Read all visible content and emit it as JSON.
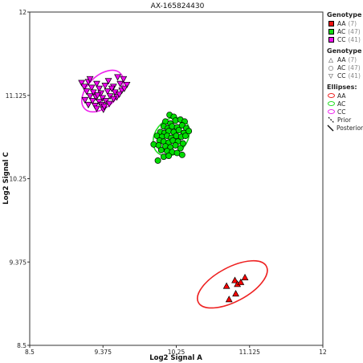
{
  "chart_data": {
    "type": "scatter",
    "title": "AX-165824430",
    "xlabel": "Log2 Signal A",
    "ylabel": "Log2 Signal C",
    "xlim": [
      8.5,
      12
    ],
    "ylim": [
      8.5,
      12
    ],
    "xticks": [
      "8.5",
      "9.375",
      "10.25",
      "11.125",
      "12"
    ],
    "yticks": [
      "8.5",
      "9.375",
      "10.25",
      "11.125",
      "12"
    ],
    "series": [
      {
        "name": "AA",
        "color": "#ff0000",
        "marker": "triangle-up",
        "points": [
          [
            10.85,
            9.12
          ],
          [
            10.95,
            9.18
          ],
          [
            10.98,
            9.14
          ],
          [
            11.02,
            9.16
          ],
          [
            11.07,
            9.21
          ],
          [
            10.88,
            8.98
          ],
          [
            10.96,
            9.04
          ]
        ]
      },
      {
        "name": "AC",
        "color": "#00dd00",
        "marker": "circle",
        "points": [
          [
            10.17,
            10.92
          ],
          [
            10.22,
            10.9
          ],
          [
            10.12,
            10.85
          ],
          [
            10.18,
            10.83
          ],
          [
            10.24,
            10.86
          ],
          [
            10.3,
            10.87
          ],
          [
            10.35,
            10.85
          ],
          [
            10.1,
            10.8
          ],
          [
            10.15,
            10.78
          ],
          [
            10.2,
            10.8
          ],
          [
            10.26,
            10.79
          ],
          [
            10.32,
            10.81
          ],
          [
            10.37,
            10.78
          ],
          [
            10.06,
            10.74
          ],
          [
            10.11,
            10.73
          ],
          [
            10.16,
            10.75
          ],
          [
            10.22,
            10.74
          ],
          [
            10.28,
            10.76
          ],
          [
            10.34,
            10.73
          ],
          [
            10.4,
            10.75
          ],
          [
            10.02,
            10.7
          ],
          [
            10.08,
            10.69
          ],
          [
            10.14,
            10.7
          ],
          [
            10.19,
            10.68
          ],
          [
            10.25,
            10.7
          ],
          [
            10.31,
            10.69
          ],
          [
            10.36,
            10.7
          ],
          [
            10.05,
            10.65
          ],
          [
            10.1,
            10.64
          ],
          [
            10.16,
            10.63
          ],
          [
            10.21,
            10.65
          ],
          [
            10.27,
            10.64
          ],
          [
            10.33,
            10.62
          ],
          [
            9.98,
            10.61
          ],
          [
            10.04,
            10.6
          ],
          [
            10.12,
            10.59
          ],
          [
            10.18,
            10.58
          ],
          [
            10.24,
            10.6
          ],
          [
            10.3,
            10.57
          ],
          [
            10.07,
            10.55
          ],
          [
            10.14,
            10.54
          ],
          [
            10.2,
            10.53
          ],
          [
            10.26,
            10.52
          ],
          [
            10.1,
            10.48
          ],
          [
            10.16,
            10.49
          ],
          [
            10.32,
            10.5
          ],
          [
            10.03,
            10.44
          ]
        ]
      },
      {
        "name": "CC",
        "color": "#ee00ee",
        "marker": "triangle-down",
        "points": [
          [
            9.12,
            11.26
          ],
          [
            9.2,
            11.27
          ],
          [
            9.3,
            11.25
          ],
          [
            9.44,
            11.28
          ],
          [
            9.55,
            11.32
          ],
          [
            9.62,
            11.3
          ],
          [
            9.15,
            11.22
          ],
          [
            9.24,
            11.21
          ],
          [
            9.33,
            11.2
          ],
          [
            9.4,
            11.23
          ],
          [
            9.5,
            11.22
          ],
          [
            9.58,
            11.25
          ],
          [
            9.66,
            11.24
          ],
          [
            9.18,
            11.17
          ],
          [
            9.26,
            11.16
          ],
          [
            9.35,
            11.15
          ],
          [
            9.43,
            11.17
          ],
          [
            9.52,
            11.16
          ],
          [
            9.6,
            11.18
          ],
          [
            9.22,
            11.12
          ],
          [
            9.29,
            11.11
          ],
          [
            9.37,
            11.1
          ],
          [
            9.46,
            11.12
          ],
          [
            9.54,
            11.11
          ],
          [
            9.16,
            11.08
          ],
          [
            9.25,
            11.07
          ],
          [
            9.33,
            11.06
          ],
          [
            9.41,
            11.07
          ],
          [
            9.5,
            11.09
          ],
          [
            9.2,
            11.03
          ],
          [
            9.28,
            11.02
          ],
          [
            9.36,
            11.03
          ],
          [
            9.45,
            11.04
          ],
          [
            9.3,
            10.99
          ],
          [
            9.38,
            10.98
          ],
          [
            9.22,
            11.3
          ],
          [
            9.48,
            11.2
          ],
          [
            9.57,
            11.14
          ],
          [
            9.31,
            11.13
          ],
          [
            9.39,
            11.01
          ],
          [
            9.63,
            11.2
          ]
        ]
      }
    ],
    "ellipses": [
      {
        "name": "AA",
        "color": "#ee2222",
        "cx": 10.92,
        "cy": 9.14,
        "rx": 0.46,
        "ry": 0.18,
        "angle_deg": -28
      },
      {
        "name": "AC",
        "color": "#22dd22",
        "cx": 10.19,
        "cy": 10.69,
        "rx": 0.25,
        "ry": 0.17,
        "angle_deg": -52
      },
      {
        "name": "CC",
        "color": "#ee22ee",
        "cx": 9.37,
        "cy": 11.17,
        "rx": 0.3,
        "ry": 0.16,
        "angle_deg": -45
      }
    ],
    "grid": false
  },
  "legend": {
    "genotype_title": "Genotype",
    "genotype_items": [
      {
        "label": "AA",
        "count": "(7)",
        "color": "#ee1111"
      },
      {
        "label": "AC",
        "count": "(47)",
        "color": "#11dd11"
      },
      {
        "label": "CC",
        "count": "(41)",
        "color": "#ee11ee"
      }
    ],
    "shape_title": "Genotype",
    "shape_items": [
      {
        "label": "AA",
        "count": "(7)",
        "symbol": "△"
      },
      {
        "label": "AC",
        "count": "(47)",
        "symbol": "○"
      },
      {
        "label": "CC",
        "count": "(41)",
        "symbol": "▽"
      }
    ],
    "ellipses_title": "Ellipses:",
    "ellipse_items": [
      {
        "label": "AA",
        "color": "#ee2222"
      },
      {
        "label": "AC",
        "color": "#22dd22"
      },
      {
        "label": "CC",
        "color": "#ee22ee"
      }
    ],
    "line_items": [
      {
        "label": "Prior",
        "style": "dashed"
      },
      {
        "label": "Posterior",
        "style": "solid"
      }
    ]
  }
}
